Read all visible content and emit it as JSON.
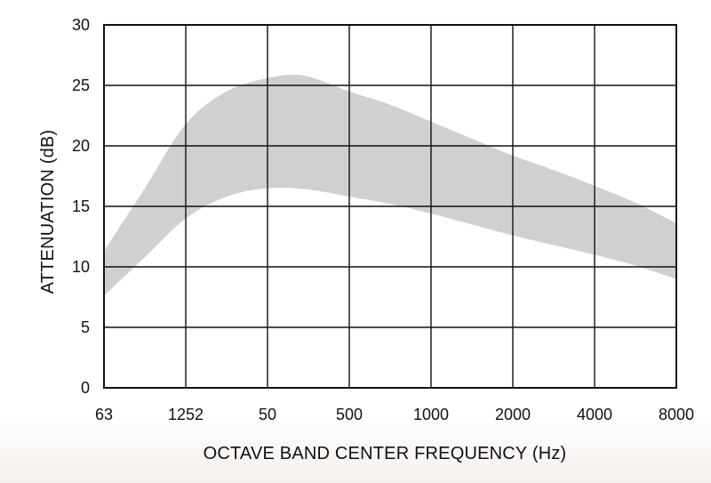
{
  "chart_data": {
    "type": "area",
    "xlabel": "OCTAVE BAND CENTER FREQUENCY (Hz)",
    "ylabel": "ATTENUATION (dB)",
    "x_tick_labels": [
      "63",
      "1252",
      "50",
      "500",
      "1000",
      "2000",
      "4000",
      "8000"
    ],
    "y_ticks": [
      0,
      5,
      10,
      15,
      20,
      25,
      30
    ],
    "ylim": [
      0,
      30
    ],
    "grid": true,
    "band": {
      "upper": [
        [
          0,
          11.3
        ],
        [
          0.5,
          16.5
        ],
        [
          1,
          21.8
        ],
        [
          1.5,
          24.5
        ],
        [
          2,
          25.6
        ],
        [
          2.45,
          25.8
        ],
        [
          3,
          24.5
        ],
        [
          3.5,
          23.4
        ],
        [
          4,
          22.0
        ],
        [
          4.5,
          20.6
        ],
        [
          5,
          19.2
        ],
        [
          5.5,
          18.0
        ],
        [
          6,
          16.7
        ],
        [
          6.5,
          15.3
        ],
        [
          7,
          13.6
        ]
      ],
      "lower": [
        [
          0,
          7.6
        ],
        [
          0.5,
          10.8
        ],
        [
          1,
          14.0
        ],
        [
          1.5,
          15.8
        ],
        [
          2,
          16.5
        ],
        [
          2.5,
          16.4
        ],
        [
          3,
          15.8
        ],
        [
          3.5,
          15.2
        ],
        [
          4,
          14.4
        ],
        [
          4.5,
          13.5
        ],
        [
          5,
          12.6
        ],
        [
          5.5,
          11.8
        ],
        [
          6,
          11.0
        ],
        [
          6.5,
          10.1
        ],
        [
          7,
          9.0
        ]
      ],
      "color": "#cfd0d2"
    }
  }
}
